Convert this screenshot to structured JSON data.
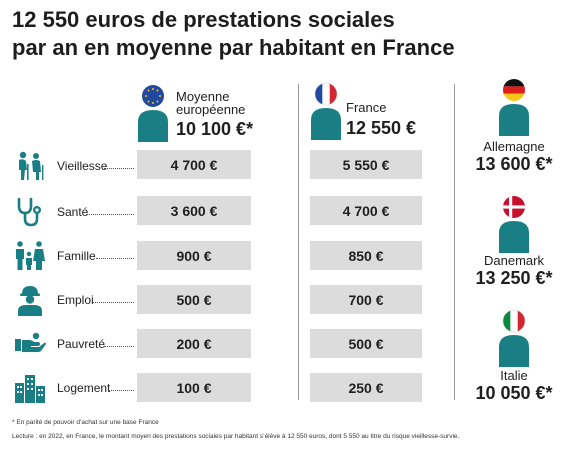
{
  "title_line1": "12 550 euros de prestations sociales",
  "title_line2": "par an en moyenne par habitant en France",
  "eu_label_line1": "Moyenne",
  "eu_label_line2": "européenne",
  "eu_total": "10 100 €*",
  "fr_label": "France",
  "fr_total": "12 550 €",
  "teal_color": "#1a7f84",
  "cell_color": "#dcdcdc",
  "chart_data": {
    "type": "table",
    "title": "12 550 euros de prestations sociales par an en moyenne par habitant en France",
    "columns": [
      "Moyenne européenne",
      "France"
    ],
    "column_totals": [
      "10 100 €*",
      "12 550 €"
    ],
    "rows": [
      {
        "category": "Vieillesse",
        "icon": "elderly-couple-icon",
        "eu": "4 700 €",
        "fr": "5 550 €"
      },
      {
        "category": "Santé",
        "icon": "stethoscope-icon",
        "eu": "3 600 €",
        "fr": "4 700 €"
      },
      {
        "category": "Famille",
        "icon": "family-icon",
        "eu": "900 €",
        "fr": "850 €"
      },
      {
        "category": "Emploi",
        "icon": "worker-icon",
        "eu": "500 €",
        "fr": "700 €"
      },
      {
        "category": "Pauvreté",
        "icon": "helping-hand-icon",
        "eu": "200 €",
        "fr": "500 €"
      },
      {
        "category": "Logement",
        "icon": "buildings-icon",
        "eu": "100 €",
        "fr": "250 €"
      }
    ],
    "other_countries": [
      {
        "name": "Allemagne",
        "value": "13 600 €*",
        "flag": "germany-flag"
      },
      {
        "name": "Danemark",
        "value": "13 250 €*",
        "flag": "denmark-flag"
      },
      {
        "name": "Italie",
        "value": "10 050 €*",
        "flag": "italy-flag"
      }
    ]
  },
  "footnote1": "* En parité de pouvoir d’achat sur une base France",
  "footnote2": "Lecture : en 2022, en France, le montant moyen des prestations sociales par habitant s’élève à 12 550 euros, dont 5 550 au titre du risque vieillesse-survie."
}
